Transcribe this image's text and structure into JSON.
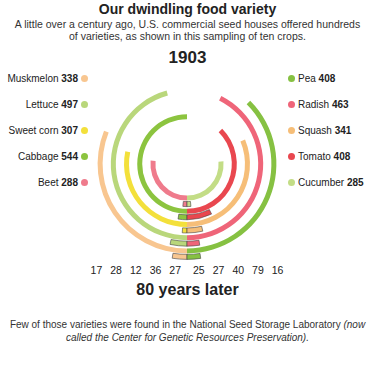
{
  "chart_data": {
    "type": "radial_bar",
    "title": "Our dwindling food variety",
    "subtitle": "A little over a century ago, U.S. commercial seed houses offered hundreds of varieties, as shown in this sampling of ten crops.",
    "categories": [
      "Beet",
      "Cabbage",
      "Sweet corn",
      "Lettuce",
      "Muskmelon",
      "Cucumber",
      "Tomato",
      "Squash",
      "Radish",
      "Pea"
    ],
    "series": [
      {
        "name": "1903",
        "values": [
          288,
          544,
          307,
          497,
          338,
          285,
          408,
          341,
          463,
          408
        ]
      },
      {
        "name": "80 years later",
        "values": [
          17,
          28,
          12,
          36,
          27,
          16,
          79,
          40,
          27,
          25
        ]
      }
    ],
    "colors": [
      "#ef7b8c",
      "#8cc43f",
      "#f3e03b",
      "#b9d77b",
      "#f8c690",
      "#c3dd86",
      "#e9474f",
      "#f6be78",
      "#ef6579",
      "#86c142"
    ],
    "data_labels": true,
    "tick_labels": false,
    "footnote": [
      "Few of those varieties were found in the National Seed Storage Laboratory",
      "(now called the Center for Genetic Resources Preservation)."
    ]
  }
}
